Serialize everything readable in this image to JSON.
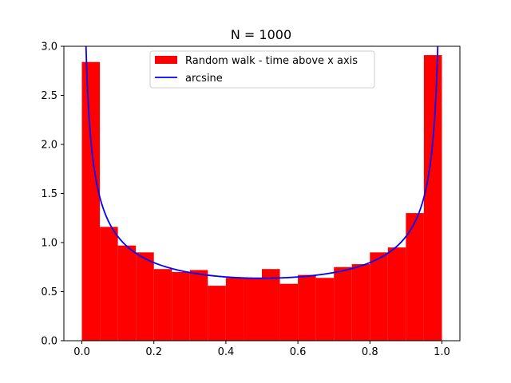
{
  "chart_data": {
    "type": "bar",
    "title": "N = 1000",
    "xlabel": "",
    "ylabel": "",
    "xlim": [
      -0.05,
      1.05
    ],
    "ylim": [
      0,
      3.0
    ],
    "xticks": [
      "0.0",
      "0.2",
      "0.4",
      "0.6",
      "0.8",
      "1.0"
    ],
    "yticks": [
      "0.0",
      "0.5",
      "1.0",
      "1.5",
      "2.0",
      "2.5",
      "3.0"
    ],
    "bin_width": 0.05,
    "series": [
      {
        "name": "Random walk - time above x axis",
        "type": "histogram",
        "color": "#ff0000",
        "bin_edges": [
          0.0,
          0.05,
          0.1,
          0.15,
          0.2,
          0.25,
          0.3,
          0.35,
          0.4,
          0.45,
          0.5,
          0.55,
          0.6,
          0.65,
          0.7,
          0.75,
          0.8,
          0.85,
          0.9,
          0.95,
          1.0
        ],
        "values": [
          2.84,
          1.16,
          0.97,
          0.9,
          0.73,
          0.7,
          0.72,
          0.56,
          0.64,
          0.64,
          0.73,
          0.58,
          0.67,
          0.64,
          0.75,
          0.78,
          0.9,
          0.95,
          1.3,
          2.91
        ]
      },
      {
        "name": "arcsine",
        "type": "line",
        "color": "#0000ff",
        "formula": "1 / (pi * sqrt(x * (1 - x)))"
      }
    ],
    "legend_position": "upper-center",
    "grid": false
  }
}
